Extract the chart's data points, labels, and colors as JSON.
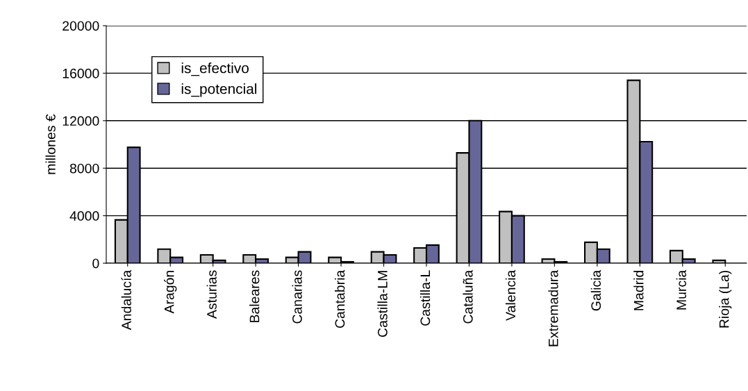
{
  "chart_data": {
    "type": "bar",
    "ylabel": "millones €",
    "categories": [
      "Andalucía",
      "Aragón",
      "Asturias",
      "Baleares",
      "Canarias",
      "Cantabria",
      "Castilla-LM",
      "Castilla-L",
      "Cataluña",
      "Valencia",
      "Extremadura",
      "Galicia",
      "Madrid",
      "Murcia",
      "Rioja (La)"
    ],
    "series": [
      {
        "name": "is_efectivo",
        "color": "#c0c0c0",
        "values": [
          3650,
          1180,
          700,
          700,
          490,
          490,
          960,
          1290,
          9290,
          4350,
          350,
          1760,
          15400,
          1060,
          240
        ]
      },
      {
        "name": "is_potencial",
        "color": "#666699",
        "values": [
          9760,
          490,
          240,
          350,
          960,
          120,
          700,
          1530,
          12000,
          4000,
          120,
          1180,
          10230,
          350,
          null
        ]
      }
    ],
    "ylim": [
      0,
      20000
    ],
    "yticks": [
      0,
      4000,
      8000,
      12000,
      16000,
      20000
    ],
    "grid": "y",
    "legend": "top left"
  }
}
